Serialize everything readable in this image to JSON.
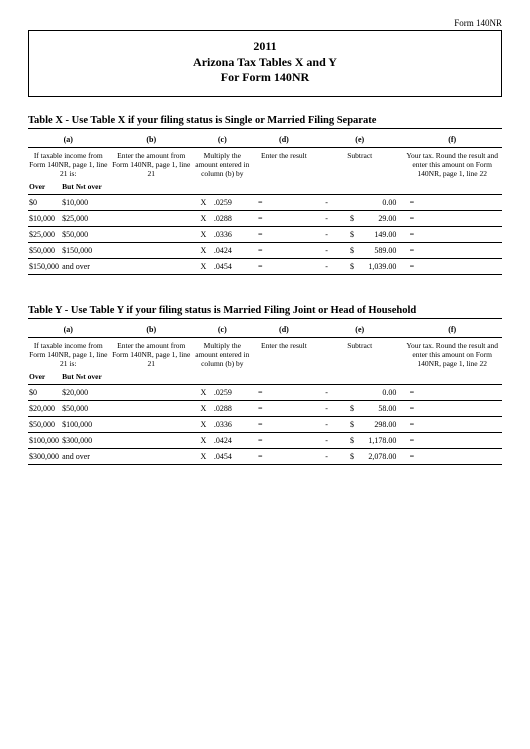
{
  "form_label": "Form 140NR",
  "title": {
    "year": "2011",
    "line2": "Arizona Tax Tables X and Y",
    "line3": "For Form 140NR"
  },
  "tables": [
    {
      "caption": "Table X - Use Table X if your filing status is Single or Married Filing Separate",
      "headers": {
        "a": "(a)",
        "b": "(b)",
        "c": "(c)",
        "d": "(d)",
        "e": "(e)",
        "f": "(f)"
      },
      "desc": {
        "a": "If taxable income from Form 140NR, page 1, line 21 is:",
        "b": "Enter the amount from Form 140NR, page 1, line 21",
        "c": "Multiply the amount entered in column (b) by",
        "d": "Enter the result",
        "e": "Subtract",
        "f": "Your tax. Round the result and enter this amount on Form 140NR, page 1, line 22"
      },
      "sub": {
        "over": "Over",
        "butnot": "But №t over"
      },
      "rows": [
        {
          "over": "$0",
          "notover": "$10,000",
          "x": "X",
          "rate": ".0259",
          "eq": "=",
          "m": "-",
          "ds": "",
          "sub": "0.00",
          "fe": "="
        },
        {
          "over": "$10,000",
          "notover": "$25,000",
          "x": "X",
          "rate": ".0288",
          "eq": "=",
          "m": "-",
          "ds": "$",
          "sub": "29.00",
          "fe": "="
        },
        {
          "over": "$25,000",
          "notover": "$50,000",
          "x": "X",
          "rate": ".0336",
          "eq": "=",
          "m": "-",
          "ds": "$",
          "sub": "149.00",
          "fe": "="
        },
        {
          "over": "$50,000",
          "notover": "$150,000",
          "x": "X",
          "rate": ".0424",
          "eq": "=",
          "m": "-",
          "ds": "$",
          "sub": "589.00",
          "fe": "="
        },
        {
          "over": "$150,000",
          "notover": "and    over",
          "x": "X",
          "rate": ".0454",
          "eq": "=",
          "m": "-",
          "ds": "$",
          "sub": "1,039.00",
          "fe": "="
        }
      ]
    },
    {
      "caption": "Table Y - Use Table Y if your filing status is Married Filing Joint or Head of Household",
      "headers": {
        "a": "(a)",
        "b": "(b)",
        "c": "(c)",
        "d": "(d)",
        "e": "(e)",
        "f": "(f)"
      },
      "desc": {
        "a": "If taxable income from Form 140NR, page 1, line 21 is:",
        "b": "Enter the amount from Form 140NR, page 1, line 21",
        "c": "Multiply the amount entered in column (b) by",
        "d": "Enter the result",
        "e": "Subtract",
        "f": "Your tax. Round the result and enter this amount on Form 140NR, page 1, line 22"
      },
      "sub": {
        "over": "Over",
        "butnot": "But №t over"
      },
      "rows": [
        {
          "over": "$0",
          "notover": "$20,000",
          "x": "X",
          "rate": ".0259",
          "eq": "=",
          "m": "-",
          "ds": "",
          "sub": "0.00",
          "fe": "="
        },
        {
          "over": "$20,000",
          "notover": "$50,000",
          "x": "X",
          "rate": ".0288",
          "eq": "=",
          "m": "-",
          "ds": "$",
          "sub": "58.00",
          "fe": "="
        },
        {
          "over": "$50,000",
          "notover": "$100,000",
          "x": "X",
          "rate": ".0336",
          "eq": "=",
          "m": "-",
          "ds": "$",
          "sub": "298.00",
          "fe": "="
        },
        {
          "over": "$100,000",
          "notover": "$300,000",
          "x": "X",
          "rate": ".0424",
          "eq": "=",
          "m": "-",
          "ds": "$",
          "sub": "1,178.00",
          "fe": "="
        },
        {
          "over": "$300,000",
          "notover": "and    over",
          "x": "X",
          "rate": ".0454",
          "eq": "=",
          "m": "-",
          "ds": "$",
          "sub": "2,078.00",
          "fe": "="
        }
      ]
    }
  ]
}
